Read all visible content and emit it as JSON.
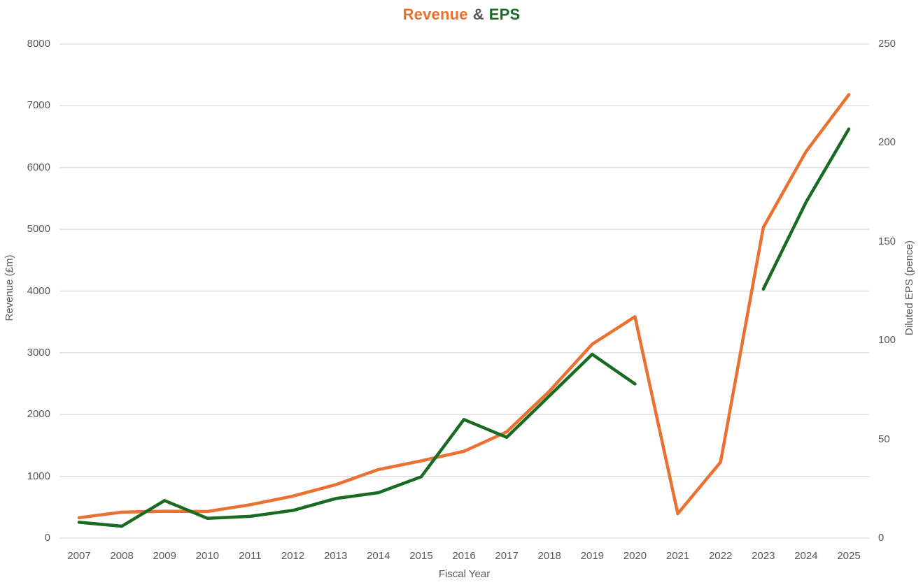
{
  "title": {
    "revenue_part": "Revenue",
    "separator": "&",
    "eps_part": "EPS"
  },
  "styles": {
    "revenue_color": "#E97132",
    "eps_color": "#196B24",
    "separator_color": "#595959",
    "grid_color": "#D9D9D9",
    "axis_text_color": "#595959",
    "background_color": "#FFFFFF"
  },
  "chart_data": {
    "type": "line",
    "title": "Revenue & EPS",
    "grid": "horizontal-only",
    "legend": "none",
    "x": {
      "label": "Fiscal Year",
      "categories": [
        "2007",
        "2008",
        "2009",
        "2010",
        "2011",
        "2012",
        "2013",
        "2014",
        "2015",
        "2016",
        "2017",
        "2018",
        "2019",
        "2020",
        "2021",
        "2022",
        "2023",
        "2024",
        "2025"
      ]
    },
    "y_left": {
      "label": "Revenue (£m)",
      "range": [
        0,
        8000
      ],
      "ticks": [
        8000,
        7000,
        6000,
        5000,
        4000,
        3000,
        2000,
        1000,
        0
      ]
    },
    "y_right": {
      "label": "Diluted EPS (pence)",
      "range": [
        0,
        250
      ],
      "ticks": [
        250,
        200,
        150,
        100,
        50,
        0
      ]
    },
    "series": [
      {
        "name": "Revenue",
        "axis": "left",
        "color": "#E97132",
        "values": [
          330,
          420,
          435,
          430,
          540,
          680,
          865,
          1110,
          1250,
          1405,
          1720,
          2380,
          3140,
          3585,
          395,
          1230,
          5030,
          6260,
          7180
        ]
      },
      {
        "name": "EPS",
        "axis": "right",
        "color": "#196B24",
        "values": [
          8,
          6,
          19,
          10,
          11,
          14,
          20,
          23,
          31,
          60,
          51,
          72,
          93,
          78,
          null,
          null,
          126,
          170,
          207
        ]
      }
    ]
  }
}
